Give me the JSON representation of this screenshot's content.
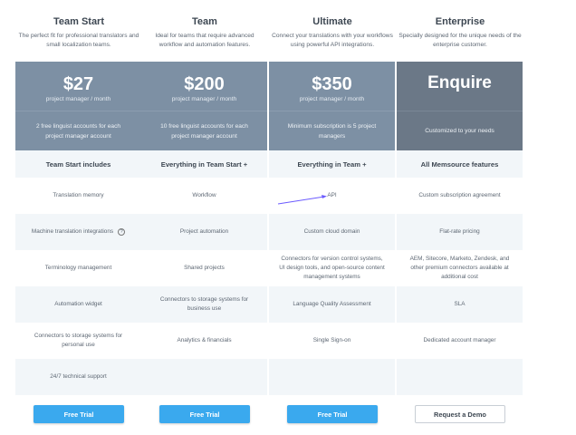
{
  "plans": [
    {
      "title": "Team Start",
      "desc": "The perfect fit for professional translators and small localization teams.",
      "price": "$27",
      "per": "project manager / month",
      "note": "2 free linguist accounts for each project manager account",
      "includes": "Team Start includes",
      "features": [
        "Translation memory",
        "Machine translation integrations",
        "Terminology management",
        "Automation widget",
        "Connectors to storage systems for personal use",
        "24/7 technical support"
      ],
      "button": "Free Trial"
    },
    {
      "title": "Team",
      "desc": "Ideal for teams that require advanced workflow and automation features.",
      "price": "$200",
      "per": "project manager / month",
      "note": "10 free linguist accounts for each project manager account",
      "includes": "Everything in Team Start +",
      "features": [
        "Workflow",
        "Project automation",
        "Shared projects",
        "Connectors to storage systems for business use",
        "Analytics & financials",
        ""
      ],
      "button": "Free Trial"
    },
    {
      "title": "Ultimate",
      "desc": "Connect your translations with your workflows using powerful API integrations.",
      "price": "$350",
      "per": "project manager / month",
      "note": "Minimum subscription is 5 project managers",
      "includes": "Everything in Team +",
      "features": [
        "API",
        "Custom cloud domain",
        "Connectors for version control systems, UI design tools, and open-source content management systems",
        "Language Quality Assessment",
        "Single Sign-on",
        ""
      ],
      "button": "Free Trial"
    },
    {
      "title": "Enterprise",
      "desc": "Specially designed for the unique needs of the enterprise customer.",
      "price": "Enquire",
      "per": "",
      "note": "Customized to your needs",
      "includes": "All Memsource features",
      "features": [
        "Custom subscription agreement",
        "Flat-rate pricing",
        "AEM, Sitecore, Marketo, Zendesk, and other premium connectors available at additional cost",
        "SLA",
        "Dedicated account manager",
        ""
      ],
      "button": "Request a Demo"
    }
  ],
  "help_icon": "?",
  "colors": {
    "price_bg": "#7d90a4",
    "enterprise_bg": "#6b7887",
    "button": "#3aa9ee",
    "annotation_arrow": "#6b5bff"
  }
}
